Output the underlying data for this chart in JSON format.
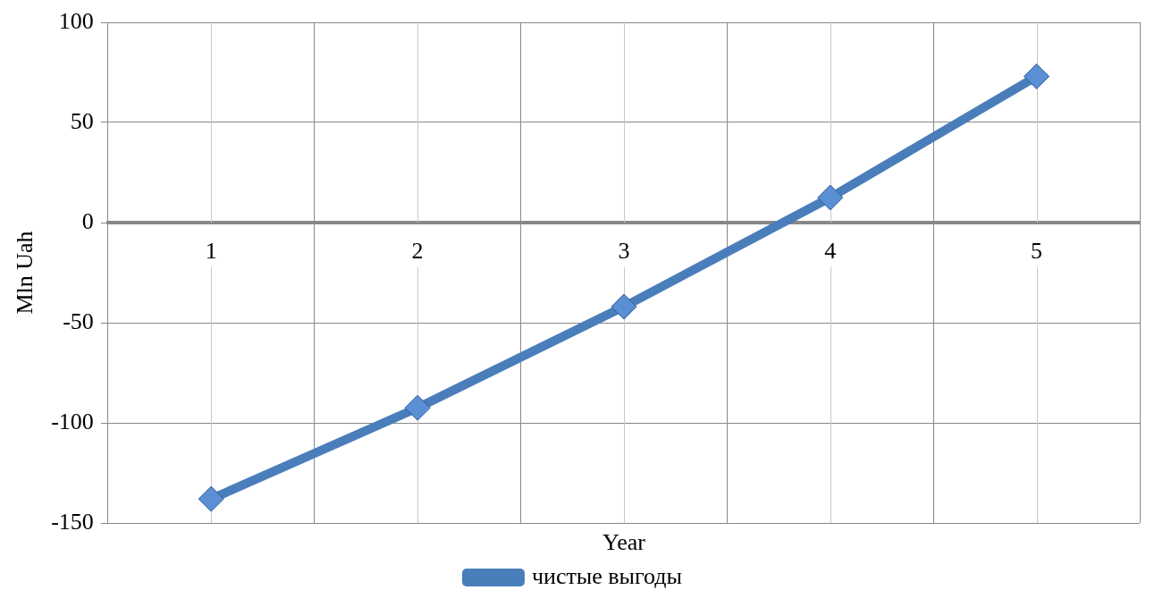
{
  "chart_data": {
    "type": "line",
    "xlabel": "Year",
    "ylabel": "Mln Uah",
    "categories": [
      "1",
      "2",
      "3",
      "4",
      "5"
    ],
    "series": [
      {
        "name": "чистые выгоды",
        "color": "#4a7ebb",
        "values": [
          -138,
          -92.5,
          -42,
          12.5,
          73
        ]
      }
    ],
    "ylim": [
      -150,
      100
    ],
    "yticks": [
      -150,
      -100,
      -50,
      0,
      50,
      100
    ],
    "grid": true,
    "legend": "bottom",
    "marker": "diamond",
    "line_style": "solid"
  }
}
